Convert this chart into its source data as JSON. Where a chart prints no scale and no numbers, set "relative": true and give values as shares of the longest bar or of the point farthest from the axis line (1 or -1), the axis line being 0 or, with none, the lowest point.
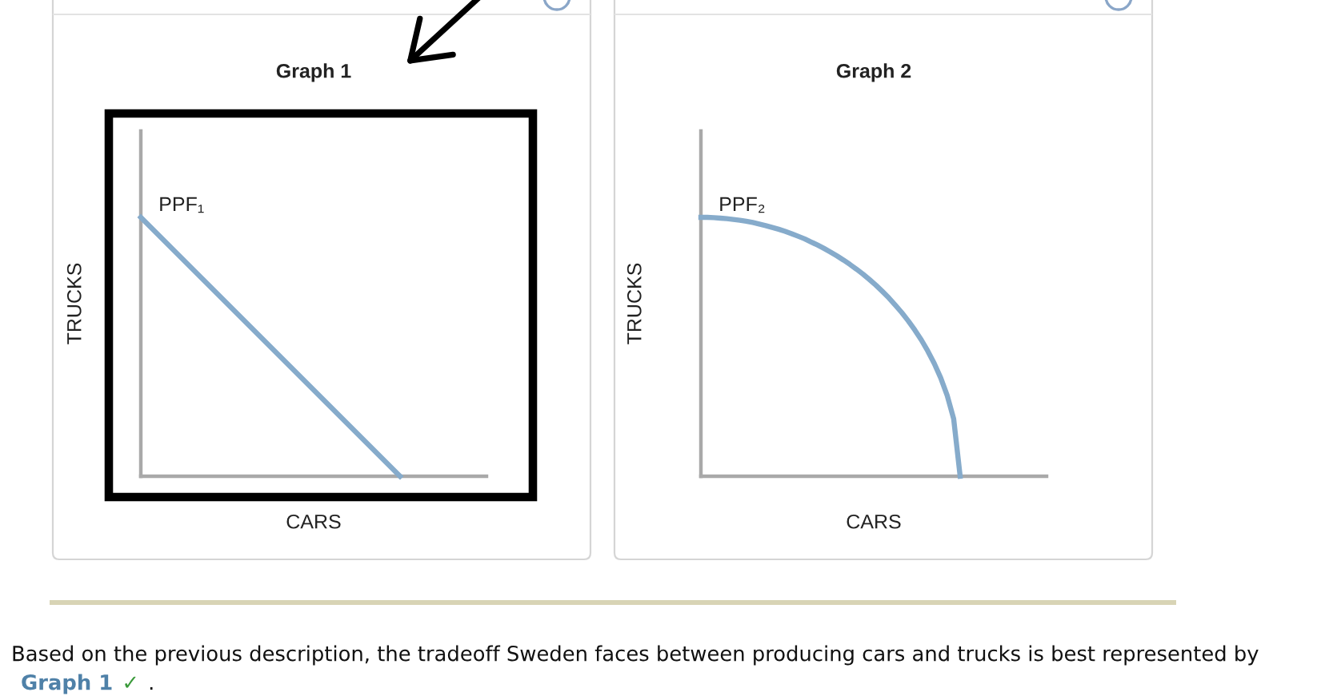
{
  "chart_data": [
    {
      "type": "line",
      "title": "Graph 1",
      "xlabel": "CARS",
      "ylabel": "TRUCKS",
      "relative": true,
      "tick_labels": false,
      "categories": [
        null,
        null
      ],
      "series": [
        {
          "name": "PPF₁",
          "color": "#86abcb",
          "values": [
            1,
            0
          ]
        }
      ]
    },
    {
      "type": "line",
      "title": "Graph 2",
      "xlabel": "CARS",
      "ylabel": "TRUCKS",
      "relative": true,
      "tick_labels": false,
      "categories": [
        null,
        null,
        null,
        null,
        null,
        null,
        null,
        null,
        null,
        null,
        null,
        null,
        null,
        null,
        null,
        null,
        null,
        null,
        null,
        null,
        null,
        null,
        null,
        null,
        null,
        null,
        null,
        null,
        null,
        null,
        null,
        null,
        null,
        null,
        null,
        null,
        null,
        null,
        null,
        null,
        null
      ],
      "series": [
        {
          "name": "PPF₂",
          "color": "#86abcb",
          "values": [
            1,
            1.0,
            0.999,
            0.997,
            0.995,
            0.992,
            0.989,
            0.985,
            0.98,
            0.974,
            0.968,
            0.961,
            0.954,
            0.946,
            0.937,
            0.927,
            0.917,
            0.905,
            0.893,
            0.88,
            0.866,
            0.851,
            0.835,
            0.818,
            0.8,
            0.781,
            0.76,
            0.738,
            0.714,
            0.689,
            0.661,
            0.632,
            0.6,
            0.565,
            0.527,
            0.484,
            0.436,
            0.38,
            0.312,
            0.222,
            0
          ]
        }
      ]
    },
    {
      "type": "other",
      "annotations": [
        "Based on the previous description, the tradeoff Sweden faces between producing cars and trucks is best represented by",
        "Graph 1",
        "✓",
        "."
      ]
    }
  ]
}
